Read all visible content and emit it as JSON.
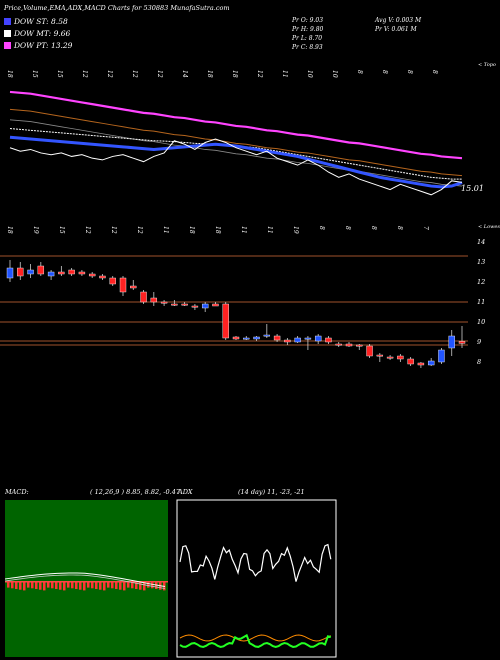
{
  "header": {
    "title": "Price,Volume,EMA,ADX,MACD Charts for 530883 MunafaSutra.com",
    "dow_st": "DOW ST: 8.58",
    "dow_mt": "DOW MT: 9.66",
    "dow_pt": "DOW PT: 13.29",
    "pr_o": "Pr   O: 9.03",
    "pr_h": "Pr   H: 9.80",
    "pr_l": "Pr   L: 8.70",
    "pr_c": "Pr   C: 8.93",
    "avg_v": "Avg V: 0.003 M",
    "pr_v": "Pr   V: 0.061 M"
  },
  "colors": {
    "st": "#4444ff",
    "mt": "#ffffff",
    "pt": "#ff44ff"
  },
  "ema_panel": {
    "corner_label": "< Topo",
    "last_price_label": "15.01",
    "top_dates": [
      "18",
      "15",
      "15",
      "12",
      "12",
      "12",
      "12",
      "14",
      "18",
      "18",
      "12",
      "11",
      "10",
      "10",
      "8",
      "8",
      "8",
      "8"
    ]
  },
  "price_panel": {
    "corner_label": "< Lowes",
    "dates": [
      "18",
      "19",
      "15",
      "12",
      "12",
      "12",
      "11",
      "18",
      "18",
      "11",
      "11",
      "19",
      "8",
      "8",
      "8",
      "8",
      "7"
    ],
    "y_ticks": [
      "14",
      "13",
      "12",
      "11",
      "10",
      "9",
      "8"
    ]
  },
  "macd": {
    "label": "MACD:",
    "params": "( 12,26,9 ) 8.85, 8.82, -0.47"
  },
  "adx": {
    "label": "ADX",
    "params": "(14 day) 11, -23, -21"
  },
  "chart_data": {
    "type": "candlestick",
    "title": "Price,Volume,EMA,ADX,MACD Charts for 530883",
    "ylim": [
      7.5,
      14.5
    ],
    "y_ticks": [
      14,
      13,
      12,
      11,
      10,
      9,
      8
    ],
    "candles": [
      {
        "o": 12.2,
        "h": 13.1,
        "l": 12.0,
        "c": 12.7
      },
      {
        "o": 12.7,
        "h": 13.0,
        "l": 12.1,
        "c": 12.3
      },
      {
        "o": 12.4,
        "h": 12.9,
        "l": 12.2,
        "c": 12.6
      },
      {
        "o": 12.8,
        "h": 13.0,
        "l": 12.3,
        "c": 12.4
      },
      {
        "o": 12.3,
        "h": 12.6,
        "l": 12.1,
        "c": 12.5
      },
      {
        "o": 12.5,
        "h": 12.8,
        "l": 12.3,
        "c": 12.4
      },
      {
        "o": 12.6,
        "h": 12.7,
        "l": 12.3,
        "c": 12.4
      },
      {
        "o": 12.5,
        "h": 12.6,
        "l": 12.3,
        "c": 12.4
      },
      {
        "o": 12.4,
        "h": 12.5,
        "l": 12.2,
        "c": 12.3
      },
      {
        "o": 12.3,
        "h": 12.4,
        "l": 12.1,
        "c": 12.2
      },
      {
        "o": 12.2,
        "h": 12.3,
        "l": 11.8,
        "c": 11.9
      },
      {
        "o": 12.2,
        "h": 12.3,
        "l": 11.3,
        "c": 11.5
      },
      {
        "o": 11.8,
        "h": 12.1,
        "l": 11.6,
        "c": 11.7
      },
      {
        "o": 11.5,
        "h": 11.6,
        "l": 10.9,
        "c": 11.0
      },
      {
        "o": 11.2,
        "h": 11.5,
        "l": 10.8,
        "c": 11.0
      },
      {
        "o": 11.0,
        "h": 11.1,
        "l": 10.8,
        "c": 10.95
      },
      {
        "o": 10.9,
        "h": 11.1,
        "l": 10.8,
        "c": 10.85
      },
      {
        "o": 10.9,
        "h": 11.0,
        "l": 10.8,
        "c": 10.85
      },
      {
        "o": 10.8,
        "h": 10.9,
        "l": 10.6,
        "c": 10.75
      },
      {
        "o": 10.7,
        "h": 11.0,
        "l": 10.5,
        "c": 10.9
      },
      {
        "o": 10.9,
        "h": 11.0,
        "l": 10.8,
        "c": 10.8
      },
      {
        "o": 10.9,
        "h": 11.0,
        "l": 9.1,
        "c": 9.2
      },
      {
        "o": 9.25,
        "h": 9.3,
        "l": 9.1,
        "c": 9.15
      },
      {
        "o": 9.2,
        "h": 9.3,
        "l": 9.1,
        "c": 9.2
      },
      {
        "o": 9.15,
        "h": 9.3,
        "l": 9.05,
        "c": 9.25
      },
      {
        "o": 9.3,
        "h": 9.9,
        "l": 9.2,
        "c": 9.35
      },
      {
        "o": 9.3,
        "h": 9.4,
        "l": 9.0,
        "c": 9.1
      },
      {
        "o": 9.1,
        "h": 9.2,
        "l": 8.85,
        "c": 9.0
      },
      {
        "o": 9.0,
        "h": 9.3,
        "l": 8.95,
        "c": 9.2
      },
      {
        "o": 9.15,
        "h": 9.3,
        "l": 8.6,
        "c": 9.2
      },
      {
        "o": 9.05,
        "h": 9.4,
        "l": 8.9,
        "c": 9.3
      },
      {
        "o": 9.2,
        "h": 9.3,
        "l": 8.9,
        "c": 9.0
      },
      {
        "o": 8.9,
        "h": 9.0,
        "l": 8.75,
        "c": 8.85
      },
      {
        "o": 8.9,
        "h": 9.0,
        "l": 8.75,
        "c": 8.8
      },
      {
        "o": 8.85,
        "h": 8.9,
        "l": 8.6,
        "c": 8.8
      },
      {
        "o": 8.8,
        "h": 8.9,
        "l": 8.2,
        "c": 8.3
      },
      {
        "o": 8.35,
        "h": 8.45,
        "l": 8.0,
        "c": 8.3
      },
      {
        "o": 8.25,
        "h": 8.35,
        "l": 8.1,
        "c": 8.2
      },
      {
        "o": 8.3,
        "h": 8.4,
        "l": 8.0,
        "c": 8.15
      },
      {
        "o": 8.15,
        "h": 8.25,
        "l": 7.8,
        "c": 7.9
      },
      {
        "o": 7.95,
        "h": 8.0,
        "l": 7.7,
        "c": 7.85
      },
      {
        "o": 7.85,
        "h": 8.2,
        "l": 7.8,
        "c": 8.05
      },
      {
        "o": 8.0,
        "h": 8.7,
        "l": 7.9,
        "c": 8.6
      },
      {
        "o": 8.7,
        "h": 9.6,
        "l": 8.3,
        "c": 9.3
      },
      {
        "o": 9.03,
        "h": 9.8,
        "l": 8.7,
        "c": 8.93
      }
    ],
    "h_levels": [
      13.3,
      11.0,
      10.0,
      9.05,
      8.85
    ],
    "ema_lines": {
      "pt": [
        20.2,
        20.15,
        20.1,
        20.0,
        19.9,
        19.8,
        19.7,
        19.6,
        19.5,
        19.4,
        19.3,
        19.2,
        19.1,
        19.0,
        18.95,
        18.85,
        18.75,
        18.7,
        18.6,
        18.5,
        18.45,
        18.35,
        18.25,
        18.2,
        18.1,
        18.0,
        17.95,
        17.85,
        17.75,
        17.7,
        17.6,
        17.5,
        17.4,
        17.3,
        17.25,
        17.15,
        17.05,
        16.95,
        16.85,
        16.75,
        16.65,
        16.6,
        16.5,
        16.45,
        16.4
      ],
      "mt": [
        18.1,
        18.05,
        18.0,
        17.95,
        17.9,
        17.85,
        17.8,
        17.75,
        17.7,
        17.65,
        17.6,
        17.55,
        17.5,
        17.45,
        17.4,
        17.38,
        17.35,
        17.3,
        17.25,
        17.22,
        17.2,
        17.15,
        17.1,
        17.05,
        17.0,
        16.9,
        16.8,
        16.7,
        16.6,
        16.5,
        16.4,
        16.3,
        16.2,
        16.1,
        16.0,
        15.9,
        15.8,
        15.7,
        15.6,
        15.5,
        15.4,
        15.3,
        15.25,
        15.2,
        15.2
      ],
      "st": [
        17.6,
        17.55,
        17.5,
        17.45,
        17.4,
        17.35,
        17.3,
        17.25,
        17.2,
        17.15,
        17.1,
        17.05,
        17.0,
        16.95,
        16.9,
        16.95,
        17.0,
        17.05,
        17.1,
        17.15,
        17.2,
        17.15,
        17.1,
        17.0,
        16.9,
        16.8,
        16.7,
        16.6,
        16.5,
        16.35,
        16.2,
        16.05,
        15.9,
        15.75,
        15.6,
        15.45,
        15.3,
        15.2,
        15.1,
        15.0,
        14.9,
        14.8,
        14.75,
        14.8,
        15.0
      ],
      "price": [
        17.0,
        16.8,
        16.9,
        16.7,
        16.6,
        16.7,
        16.5,
        16.6,
        16.4,
        16.3,
        16.5,
        16.6,
        16.4,
        16.2,
        16.5,
        16.7,
        17.4,
        17.2,
        16.9,
        17.3,
        17.5,
        17.3,
        17.0,
        16.8,
        16.6,
        16.8,
        16.4,
        16.2,
        16.0,
        16.3,
        16.0,
        15.6,
        15.3,
        15.5,
        15.2,
        15.0,
        14.8,
        14.6,
        14.9,
        14.7,
        14.5,
        14.3,
        14.6,
        15.1,
        15.01
      ]
    }
  }
}
